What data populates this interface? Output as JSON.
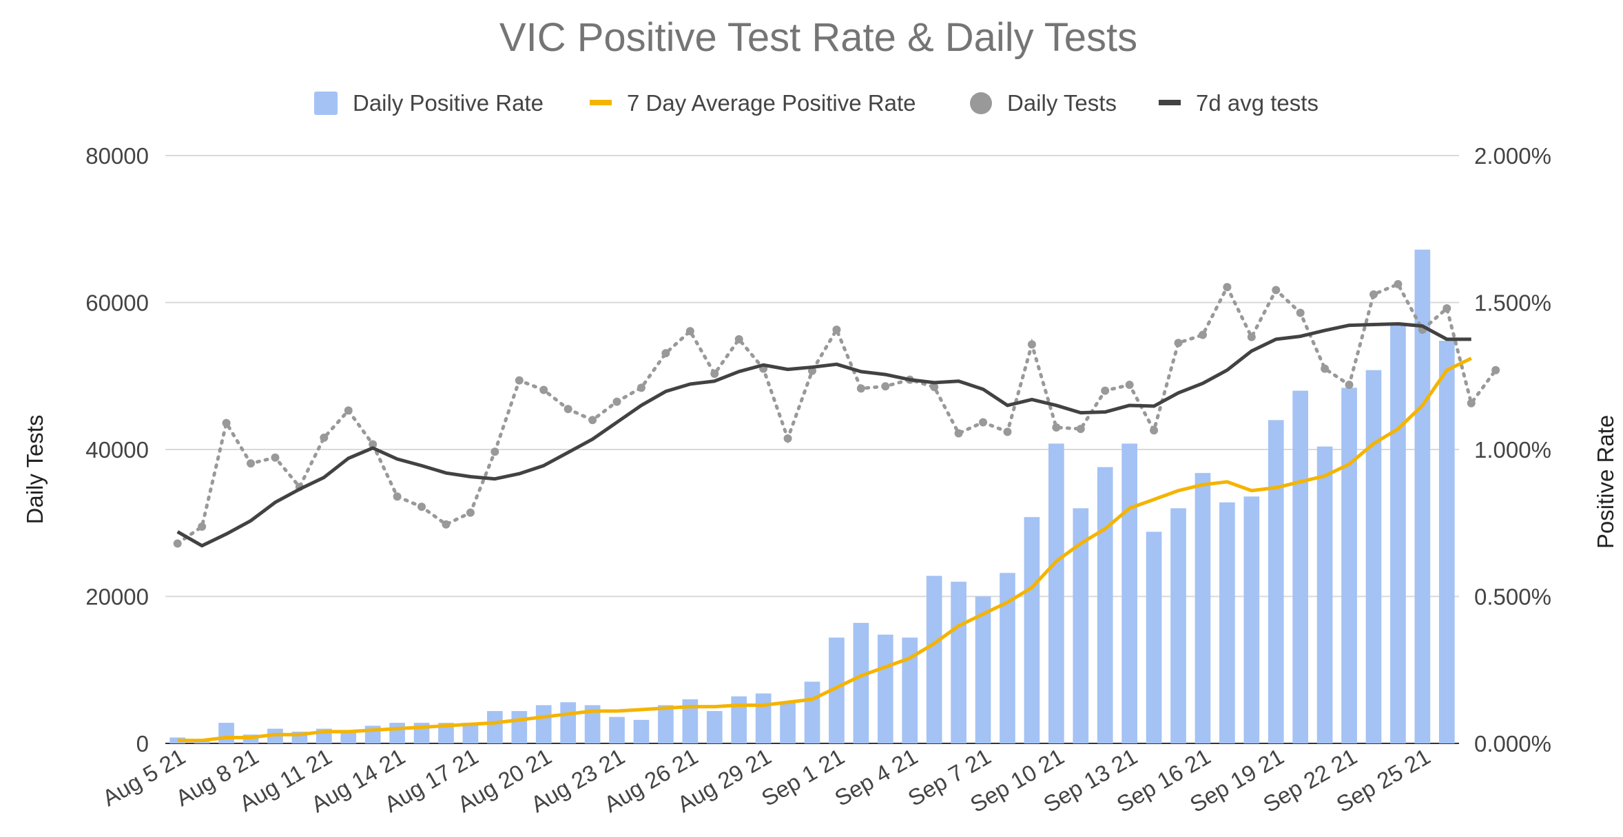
{
  "chart_data": {
    "type": "combo",
    "title": "VIC Positive Test Rate & Daily Tests",
    "y_left_label": "Daily Tests",
    "y_right_label": "Positive Rate",
    "y_left_ticks": [
      "0",
      "20000",
      "40000",
      "60000",
      "80000"
    ],
    "y_right_ticks": [
      "0.000%",
      "0.500%",
      "1.000%",
      "1.500%",
      "2.000%"
    ],
    "ylim_left": [
      0,
      80000
    ],
    "ylim_right": [
      0,
      2.0
    ],
    "legend_position": "top",
    "x_tick_labels": [
      "Aug 5 21",
      "Aug 8 21",
      "Aug 11 21",
      "Aug 14 21",
      "Aug 17 21",
      "Aug 20 21",
      "Aug 23 21",
      "Aug 26 21",
      "Aug 29 21",
      "Sep 1 21",
      "Sep 4 21",
      "Sep 7 21",
      "Sep 10 21",
      "Sep 13 21",
      "Sep 16 21",
      "Sep 19 21",
      "Sep 22 21",
      "Sep 25 21"
    ],
    "x_tick_every": 3,
    "series": [
      {
        "name": "Daily Positive Rate",
        "type": "bar",
        "axis": "right",
        "color": "#a4c2f4",
        "values": [
          0.02,
          0.01,
          0.07,
          0.03,
          0.05,
          0.04,
          0.05,
          0.04,
          0.06,
          0.07,
          0.07,
          0.07,
          0.07,
          0.11,
          0.11,
          0.13,
          0.14,
          0.13,
          0.09,
          0.08,
          0.13,
          0.15,
          0.11,
          0.16,
          0.17,
          0.14,
          0.21,
          0.36,
          0.41,
          0.37,
          0.36,
          0.57,
          0.55,
          0.5,
          0.58,
          0.77,
          1.02,
          0.8,
          0.94,
          1.02,
          0.72,
          0.8,
          0.92,
          0.82,
          0.84,
          1.1,
          1.2,
          1.01,
          1.21,
          1.27,
          1.43,
          1.68,
          1.37
        ]
      },
      {
        "name": "7 Day Average Positive Rate",
        "type": "line",
        "axis": "right",
        "color": "#f4b400",
        "values": [
          0.01,
          0.01,
          0.02,
          0.02,
          0.03,
          0.03,
          0.04,
          0.04,
          0.045,
          0.05,
          0.055,
          0.06,
          0.065,
          0.07,
          0.08,
          0.09,
          0.1,
          0.11,
          0.11,
          0.115,
          0.12,
          0.125,
          0.125,
          0.13,
          0.13,
          0.14,
          0.15,
          0.19,
          0.23,
          0.26,
          0.29,
          0.34,
          0.4,
          0.44,
          0.48,
          0.53,
          0.62,
          0.68,
          0.73,
          0.8,
          0.83,
          0.86,
          0.88,
          0.89,
          0.86,
          0.87,
          0.89,
          0.91,
          0.95,
          1.02,
          1.07,
          1.15,
          1.27,
          1.31
        ]
      },
      {
        "name": "Daily Tests",
        "type": "scatter-dotted",
        "axis": "left",
        "color": "#999999",
        "values": [
          27200,
          29500,
          43600,
          38100,
          38900,
          34900,
          41600,
          45300,
          40700,
          33600,
          32200,
          29800,
          31400,
          39700,
          49400,
          48100,
          45500,
          44000,
          46500,
          48400,
          53100,
          56100,
          50300,
          55000,
          51000,
          41500,
          50700,
          56300,
          48300,
          48600,
          49500,
          48500,
          42200,
          43700,
          42400,
          54300,
          43000,
          42800,
          48000,
          48800,
          42600,
          54500,
          55600,
          62100,
          55300,
          61700,
          58600,
          51000,
          48800,
          61100,
          62500,
          56300,
          59200,
          46300,
          50800
        ]
      },
      {
        "name": "7d avg tests",
        "type": "line",
        "axis": "left",
        "color": "#424242",
        "values": [
          28800,
          26900,
          28500,
          30300,
          32800,
          34600,
          36200,
          38800,
          40200,
          38700,
          37800,
          36800,
          36300,
          36000,
          36700,
          37800,
          39600,
          41400,
          43700,
          46000,
          47900,
          48900,
          49300,
          50600,
          51500,
          50900,
          51200,
          51600,
          50600,
          50200,
          49500,
          49100,
          49300,
          48200,
          46000,
          46800,
          46000,
          45000,
          45100,
          46000,
          45900,
          47700,
          49000,
          50800,
          53400,
          55000,
          55400,
          56200,
          56900,
          57000,
          57100,
          56800,
          55000,
          55000
        ]
      }
    ]
  }
}
